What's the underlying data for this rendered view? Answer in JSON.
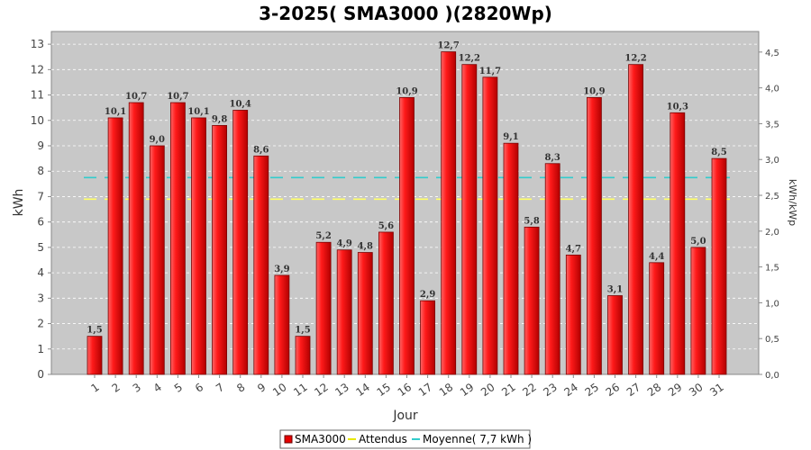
{
  "chart_data": {
    "type": "bar",
    "title": "3-2025( SMA3000 )(2820Wp)",
    "xlabel": "Jour",
    "ylabel": "kWh",
    "y2label": "kWh/kWp",
    "ylim": [
      0,
      13.5
    ],
    "y2lim": [
      0,
      4.787
    ],
    "yticks": [
      0,
      1,
      2,
      3,
      4,
      5,
      6,
      7,
      8,
      9,
      10,
      11,
      12,
      13
    ],
    "y2ticks": [
      "0,0",
      "0,5",
      "1,0",
      "1,5",
      "2,0",
      "2,5",
      "3,0",
      "3,5",
      "4,0",
      "4,5"
    ],
    "grid": true,
    "legend_position": "bottom",
    "categories": [
      "1",
      "2",
      "3",
      "4",
      "5",
      "6",
      "7",
      "8",
      "9",
      "10",
      "11",
      "12",
      "13",
      "14",
      "15",
      "16",
      "17",
      "18",
      "19",
      "20",
      "21",
      "22",
      "23",
      "24",
      "25",
      "26",
      "27",
      "28",
      "29",
      "30",
      "31"
    ],
    "series": [
      {
        "name": "SMA3000",
        "color": "#e60000",
        "values": [
          1.5,
          10.1,
          10.7,
          9.0,
          10.7,
          10.1,
          9.8,
          10.4,
          8.6,
          3.9,
          1.5,
          5.2,
          4.9,
          4.8,
          5.6,
          10.9,
          2.9,
          12.7,
          12.2,
          11.7,
          9.1,
          5.8,
          8.3,
          4.7,
          10.9,
          3.1,
          12.2,
          4.4,
          10.3,
          5.0,
          8.5
        ],
        "labels": [
          "1,5",
          "10,1",
          "10,7",
          "9,0",
          "10,7",
          "10,1",
          "9,8",
          "10,4",
          "8,6",
          "3,9",
          "1,5",
          "5,2",
          "4,9",
          "4,8",
          "5,6",
          "10,9",
          "2,9",
          "12,7",
          "12,2",
          "11,7",
          "9,1",
          "5,8",
          "8,3",
          "4,7",
          "10,9",
          "3,1",
          "12,2",
          "4,4",
          "10,3",
          "5,0",
          "8,5"
        ]
      }
    ],
    "lines": [
      {
        "name": "Attendus",
        "color": "#ffff66",
        "value": 6.9
      },
      {
        "name": "Moyenne( 7,7 kWh )",
        "color": "#33cccc",
        "value": 7.75
      }
    ]
  }
}
